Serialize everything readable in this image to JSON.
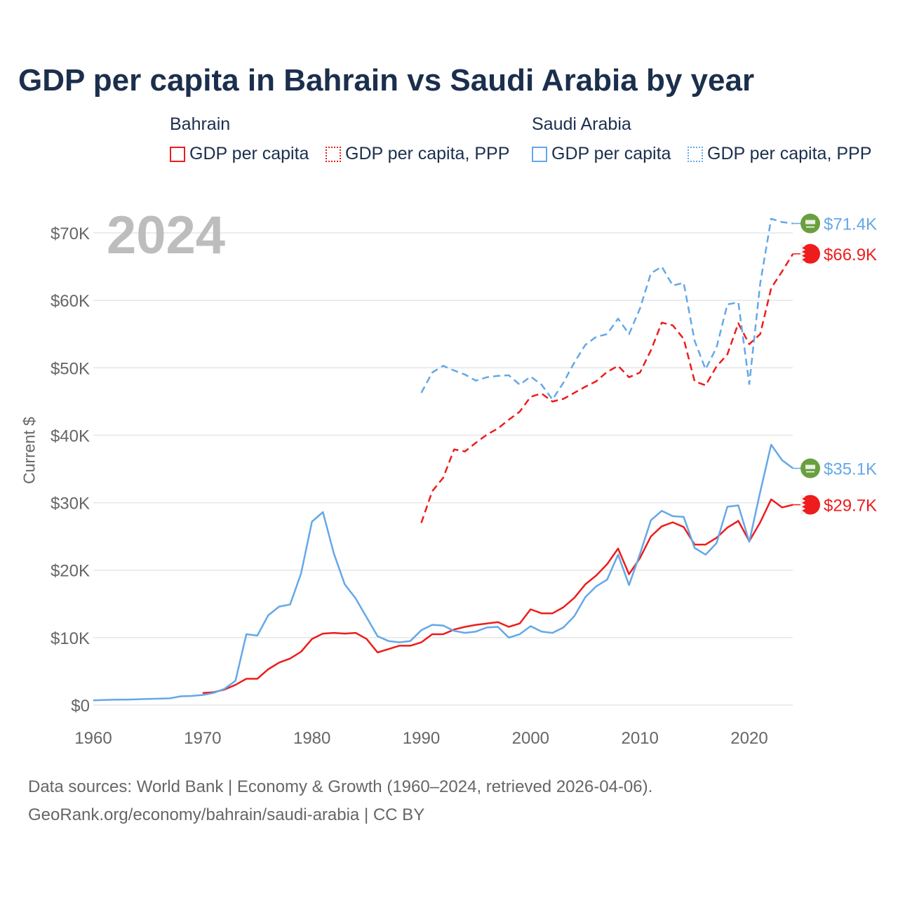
{
  "title": "GDP per capita in Bahrain vs Saudi Arabia by year",
  "legend": {
    "groups": [
      {
        "name": "Bahrain",
        "items": [
          "GDP per capita",
          "GDP per capita, PPP"
        ],
        "color": "#ee1c1c"
      },
      {
        "name": "Saudi Arabia",
        "items": [
          "GDP per capita",
          "GDP per capita, PPP"
        ],
        "color": "#64a8e8"
      }
    ]
  },
  "year_watermark": "2024",
  "footer": {
    "line1": "Data sources: World Bank | Economy & Growth (1960–2024, retrieved 2026-04-06).",
    "line2": "GeoRank.org/economy/bahrain/saudi-arabia | CC BY"
  },
  "chart_data": {
    "type": "line",
    "title": "GDP per capita in Bahrain vs Saudi Arabia by year",
    "xlabel": "",
    "ylabel": "Current $",
    "xlim": [
      1960,
      2024
    ],
    "ylim": [
      0,
      70000
    ],
    "x_ticks": [
      "1960",
      "1970",
      "1980",
      "1990",
      "2000",
      "2010",
      "2020"
    ],
    "y_ticks": [
      "$0",
      "$10K",
      "$20K",
      "$30K",
      "$40K",
      "$50K",
      "$60K",
      "$70K"
    ],
    "grid": true,
    "legend_position": "top",
    "series": [
      {
        "name": "Bahrain — GDP per capita",
        "color": "#ee1c1c",
        "dash": false,
        "start": 1970,
        "end_label": "$29.7K",
        "values": [
          1.8,
          1.9,
          2.3,
          3.0,
          3.9,
          3.9,
          5.3,
          6.3,
          6.9,
          7.9,
          9.8,
          10.6,
          10.7,
          10.6,
          10.7,
          9.8,
          7.8,
          8.3,
          8.8,
          8.8,
          9.3,
          10.5,
          10.5,
          11.2,
          11.6,
          11.9,
          12.1,
          12.3,
          11.6,
          12.1,
          14.2,
          13.6,
          13.6,
          14.5,
          15.9,
          17.9,
          19.2,
          20.9,
          23.2,
          19.4,
          21.8,
          25.0,
          26.5,
          27.1,
          26.4,
          23.8,
          23.8,
          24.8,
          26.3,
          27.3,
          24.3,
          27.1,
          30.5,
          29.3,
          29.7
        ]
      },
      {
        "name": "Bahrain — GDP per capita, PPP",
        "color": "#ee1c1c",
        "dash": true,
        "start": 1990,
        "end_label": "$66.9K",
        "values": [
          27.0,
          31.7,
          33.7,
          37.9,
          37.6,
          38.9,
          40.1,
          41.0,
          42.3,
          43.5,
          45.7,
          46.2,
          45.0,
          45.4,
          46.3,
          47.2,
          48.0,
          49.4,
          50.3,
          48.6,
          49.3,
          52.6,
          56.7,
          56.3,
          54.3,
          48.0,
          47.4,
          50.2,
          52.0,
          56.6,
          53.5,
          55.0,
          61.8,
          64.3,
          66.9
        ]
      },
      {
        "name": "Saudi Arabia — GDP per capita",
        "color": "#64a8e8",
        "dash": false,
        "start": 1960,
        "end_label": "$35.1K",
        "values": [
          0.7,
          0.75,
          0.8,
          0.8,
          0.85,
          0.9,
          0.95,
          1.0,
          1.3,
          1.35,
          1.5,
          1.8,
          2.4,
          3.6,
          10.5,
          10.3,
          13.3,
          14.6,
          14.9,
          19.5,
          27.2,
          28.6,
          22.5,
          17.9,
          15.8,
          13.0,
          10.2,
          9.5,
          9.3,
          9.5,
          11.1,
          11.9,
          11.8,
          11.0,
          10.7,
          10.9,
          11.5,
          11.6,
          10.0,
          10.5,
          11.7,
          10.9,
          10.7,
          11.5,
          13.2,
          16.0,
          17.6,
          18.6,
          22.3,
          17.8,
          22.4,
          27.4,
          28.8,
          28.0,
          27.9,
          23.3,
          22.3,
          24.0,
          29.4,
          29.6,
          24.2,
          31.6,
          38.6,
          36.3,
          35.1
        ]
      },
      {
        "name": "Saudi Arabia — GDP per capita, PPP",
        "color": "#64a8e8",
        "dash": true,
        "start": 1990,
        "end_label": "$71.4K",
        "values": [
          46.3,
          49.3,
          50.3,
          49.6,
          49.0,
          48.1,
          48.6,
          48.8,
          48.9,
          47.5,
          48.7,
          47.5,
          45.3,
          47.8,
          50.8,
          53.4,
          54.6,
          55.0,
          57.3,
          55.0,
          58.8,
          64.0,
          65.0,
          62.2,
          62.6,
          54.0,
          49.8,
          53.0,
          59.4,
          59.7,
          47.6,
          62.5,
          72.1,
          71.6,
          71.4
        ]
      }
    ],
    "value_unit": "thousand current US$"
  }
}
